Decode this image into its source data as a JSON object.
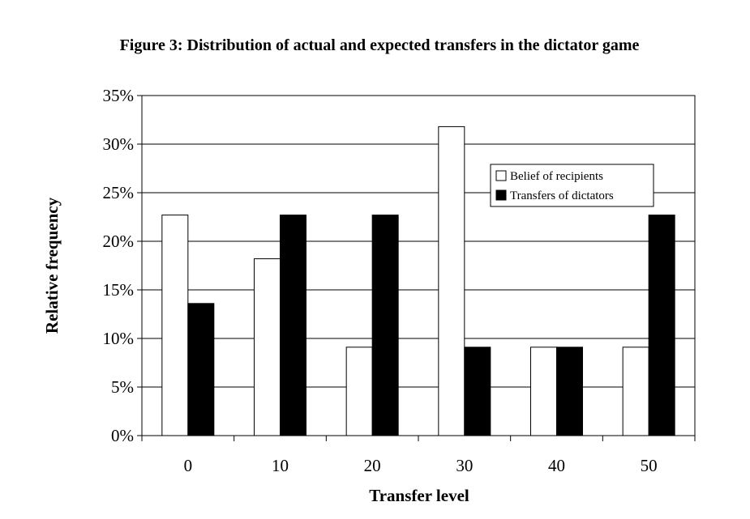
{
  "chart_data": {
    "type": "bar",
    "title": "Figure 3: Distribution of actual and expected transfers in the dictator game",
    "xlabel": "Transfer level",
    "ylabel": "Relative frequency",
    "categories": [
      "0",
      "10",
      "20",
      "30",
      "40",
      "50"
    ],
    "series": [
      {
        "name": "Belief of recipients",
        "color": "#ffffff",
        "values": [
          22.7,
          18.2,
          9.1,
          31.8,
          9.1,
          9.1
        ]
      },
      {
        "name": "Transfers of dictators",
        "color": "#000000",
        "values": [
          13.6,
          22.7,
          22.7,
          9.1,
          9.1,
          22.7
        ]
      }
    ],
    "ylim": [
      0,
      35
    ],
    "yticks": [
      0,
      5,
      10,
      15,
      20,
      25,
      30,
      35
    ],
    "ytick_labels": [
      "0%",
      "5%",
      "10%",
      "15%",
      "20%",
      "25%",
      "30%",
      "35%"
    ],
    "grid": true,
    "legend_position": "upper-right"
  }
}
